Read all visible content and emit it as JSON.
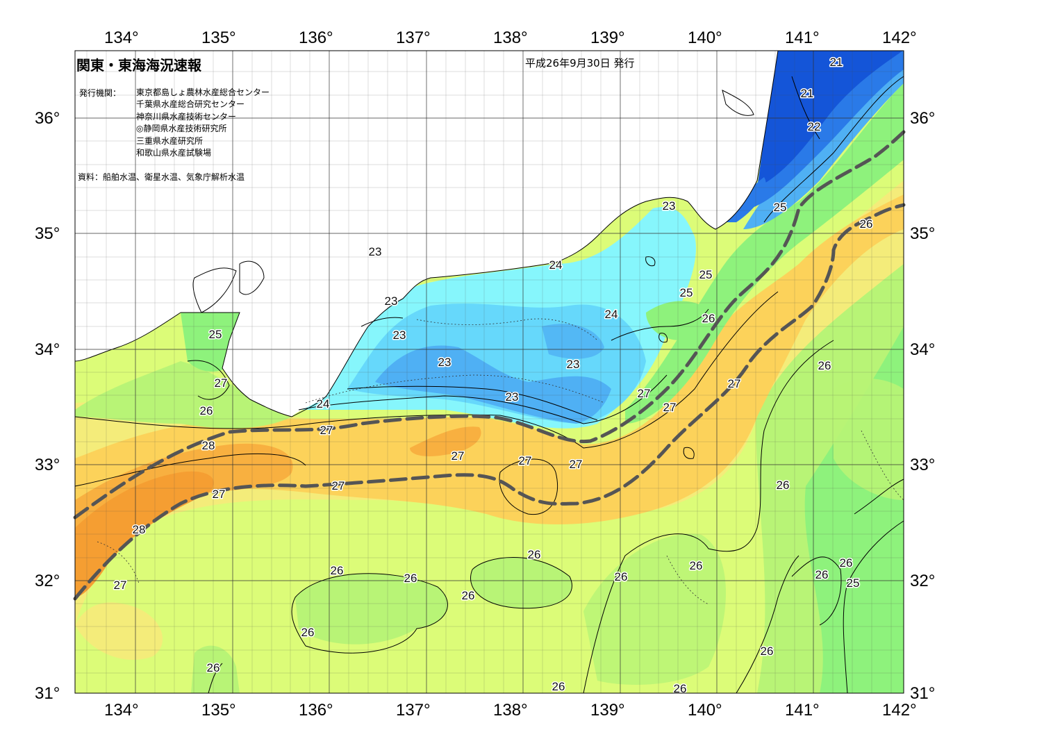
{
  "header": {
    "title": "関東・東海海況速報",
    "issue_date": "平成26年9月30日 発行",
    "institutions_label": "発行機関：",
    "institutions": [
      "東京都島しょ農林水産総合センター",
      "千葉県水産総合研究センター",
      "神奈川県水産技術センター",
      "◎静岡県水産技術研究所",
      "三重県水産研究所",
      "和歌山県水産試験場"
    ],
    "source": "資料：船舶水温、衛星水温、気象庁解析水温"
  },
  "axes": {
    "longitude_labels": [
      "134°",
      "135°",
      "136°",
      "137°",
      "138°",
      "139°",
      "140°",
      "141°",
      "142°"
    ],
    "latitude_labels": [
      "36°",
      "35°",
      "34°",
      "33°",
      "32°",
      "31°"
    ]
  },
  "colors": {
    "t21": "#1455d8",
    "t22": "#2a7ae8",
    "t23": "#4fb0f4",
    "t23_5": "#66d8fb",
    "t24": "#86f6fc",
    "t25": "#8ef27c",
    "t25_5": "#b8f476",
    "t26": "#dcfc78",
    "t26_5": "#f4ec7a",
    "t27": "#fcd25a",
    "t27_5": "#f8b040",
    "t28": "#f59e32",
    "land": "#ffffff",
    "kuroshio_axis": "#555555"
  },
  "isotherm_labels": [
    {
      "value": "21"
    },
    {
      "value": "21"
    },
    {
      "value": "22"
    },
    {
      "value": "23"
    },
    {
      "value": "25"
    },
    {
      "value": "26"
    },
    {
      "value": "23"
    },
    {
      "value": "24"
    },
    {
      "value": "23"
    },
    {
      "value": "25"
    },
    {
      "value": "25"
    },
    {
      "value": "23"
    },
    {
      "value": "24"
    },
    {
      "value": "26"
    },
    {
      "value": "25"
    },
    {
      "value": "27"
    },
    {
      "value": "23"
    },
    {
      "value": "23"
    },
    {
      "value": "26"
    },
    {
      "value": "27"
    },
    {
      "value": "26"
    },
    {
      "value": "24"
    },
    {
      "value": "23"
    },
    {
      "value": "27"
    },
    {
      "value": "27"
    },
    {
      "value": "27"
    },
    {
      "value": "28"
    },
    {
      "value": "27"
    },
    {
      "value": "27"
    },
    {
      "value": "27"
    },
    {
      "value": "27"
    },
    {
      "value": "26"
    },
    {
      "value": "27"
    },
    {
      "value": "28"
    },
    {
      "value": "27"
    },
    {
      "value": "26"
    },
    {
      "value": "26"
    },
    {
      "value": "26"
    },
    {
      "value": "26"
    },
    {
      "value": "26"
    },
    {
      "value": "26"
    },
    {
      "value": "26"
    },
    {
      "value": "26"
    },
    {
      "value": "25"
    },
    {
      "value": "26"
    },
    {
      "value": "26"
    },
    {
      "value": "26"
    },
    {
      "value": "26"
    },
    {
      "value": "26"
    }
  ]
}
